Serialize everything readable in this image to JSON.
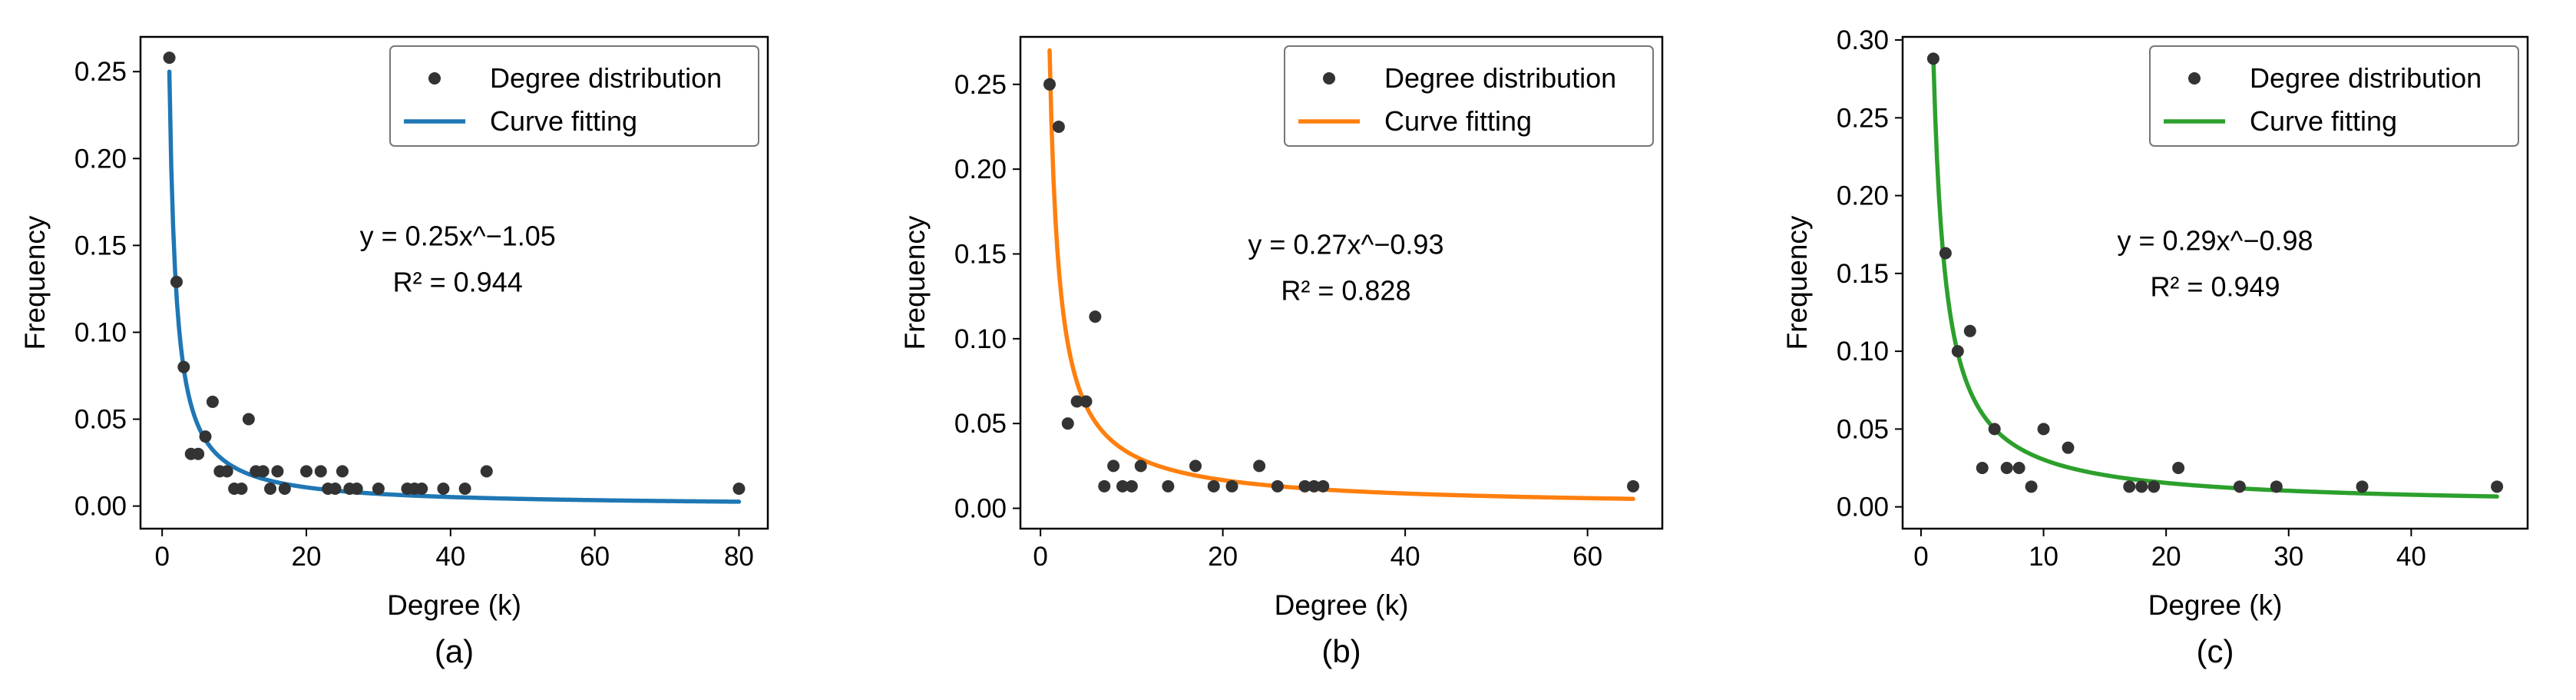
{
  "figure": {
    "panel_labels": [
      "(a)",
      "(b)",
      "(c)"
    ]
  },
  "chart_data": [
    {
      "type": "scatter",
      "panel_label": "(a)",
      "xlabel": "Degree (k)",
      "ylabel": "Frequency",
      "xlim": [
        -3,
        84
      ],
      "ylim": [
        -0.013,
        0.27
      ],
      "xticks": [
        0,
        20,
        40,
        60,
        80
      ],
      "yticks": [
        0.0,
        0.05,
        0.1,
        0.15,
        0.2,
        0.25
      ],
      "xtick_labels": [
        "0",
        "20",
        "40",
        "60",
        "80"
      ],
      "ytick_labels": [
        "0.00",
        "0.05",
        "0.10",
        "0.15",
        "0.20",
        "0.25"
      ],
      "legend": {
        "position": "top-right",
        "entries": [
          "Degree distribution",
          "Curve fitting"
        ]
      },
      "annotation": [
        "y = 0.25x^−1.05",
        "R² = 0.944"
      ],
      "annotation_at": {
        "x": 41,
        "y": 0.15
      },
      "fit": {
        "a": 0.25,
        "b": -1.05,
        "r2": 0.944,
        "x_range": [
          1,
          80
        ]
      },
      "colors": {
        "fit": "#1f77b4",
        "points": "#333333"
      },
      "series": [
        {
          "name": "Degree distribution",
          "kind": "points",
          "x": [
            1,
            2,
            3,
            4,
            5,
            6,
            7,
            8,
            9,
            10,
            11,
            12,
            13,
            14,
            15,
            16,
            17,
            20,
            22,
            23,
            24,
            25,
            26,
            27,
            30,
            34,
            35,
            36,
            39,
            42,
            45,
            80
          ],
          "y": [
            0.258,
            0.129,
            0.08,
            0.03,
            0.03,
            0.04,
            0.06,
            0.02,
            0.02,
            0.01,
            0.01,
            0.05,
            0.02,
            0.02,
            0.01,
            0.02,
            0.01,
            0.02,
            0.02,
            0.01,
            0.01,
            0.02,
            0.01,
            0.01,
            0.01,
            0.01,
            0.01,
            0.01,
            0.01,
            0.01,
            0.02,
            0.01
          ]
        },
        {
          "name": "Curve fitting",
          "kind": "line"
        }
      ]
    },
    {
      "type": "scatter",
      "panel_label": "(b)",
      "xlabel": "Degree (k)",
      "ylabel": "Frequency",
      "xlim": [
        -2.2,
        68.2
      ],
      "ylim": [
        -0.012,
        0.278
      ],
      "xticks": [
        0,
        20,
        40,
        60
      ],
      "yticks": [
        0.0,
        0.05,
        0.1,
        0.15,
        0.2,
        0.25
      ],
      "xtick_labels": [
        "0",
        "20",
        "40",
        "60"
      ],
      "ytick_labels": [
        "0.00",
        "0.05",
        "0.10",
        "0.15",
        "0.20",
        "0.25"
      ],
      "legend": {
        "position": "top-right",
        "entries": [
          "Degree distribution",
          "Curve fitting"
        ]
      },
      "annotation": [
        "y = 0.27x^−0.93",
        "R² = 0.828"
      ],
      "annotation_at": {
        "x": 33.5,
        "y": 0.15
      },
      "fit": {
        "a": 0.27,
        "b": -0.93,
        "r2": 0.828,
        "x_range": [
          1,
          65
        ]
      },
      "colors": {
        "fit": "#ff7f0e",
        "points": "#333333"
      },
      "series": [
        {
          "name": "Degree distribution",
          "kind": "points",
          "x": [
            1,
            2,
            3,
            4,
            5,
            6,
            7,
            8,
            9,
            10,
            11,
            14,
            17,
            19,
            21,
            24,
            26,
            29,
            30,
            31,
            65
          ],
          "y": [
            0.25,
            0.225,
            0.05,
            0.063,
            0.063,
            0.113,
            0.013,
            0.025,
            0.013,
            0.013,
            0.025,
            0.013,
            0.025,
            0.013,
            0.013,
            0.025,
            0.013,
            0.013,
            0.013,
            0.013,
            0.013
          ]
        },
        {
          "name": "Curve fitting",
          "kind": "line"
        }
      ]
    },
    {
      "type": "scatter",
      "panel_label": "(c)",
      "xlabel": "Degree (k)",
      "ylabel": "Frequency",
      "xlim": [
        -1.5,
        49.5
      ],
      "ylim": [
        -0.014,
        0.302
      ],
      "xticks": [
        0,
        10,
        20,
        30,
        40
      ],
      "yticks": [
        0.0,
        0.05,
        0.1,
        0.15,
        0.2,
        0.25,
        0.3
      ],
      "xtick_labels": [
        "0",
        "10",
        "20",
        "30",
        "40"
      ],
      "ytick_labels": [
        "0.00",
        "0.05",
        "0.10",
        "0.15",
        "0.20",
        "0.25",
        "0.30"
      ],
      "legend": {
        "position": "top-right",
        "entries": [
          "Degree distribution",
          "Curve fitting"
        ]
      },
      "annotation": [
        "y = 0.29x^−0.98",
        "R² = 0.949"
      ],
      "annotation_at": {
        "x": 24,
        "y": 0.165
      },
      "fit": {
        "a": 0.29,
        "b": -0.98,
        "r2": 0.949,
        "x_range": [
          1,
          47
        ]
      },
      "colors": {
        "fit": "#2ca02c",
        "points": "#333333"
      },
      "series": [
        {
          "name": "Degree distribution",
          "kind": "points",
          "x": [
            1,
            2,
            3,
            4,
            5,
            6,
            7,
            8,
            9,
            10,
            12,
            17,
            18,
            19,
            21,
            26,
            29,
            36,
            47
          ],
          "y": [
            0.288,
            0.163,
            0.1,
            0.113,
            0.025,
            0.05,
            0.025,
            0.025,
            0.013,
            0.05,
            0.038,
            0.013,
            0.013,
            0.013,
            0.025,
            0.013,
            0.013,
            0.013,
            0.013
          ]
        },
        {
          "name": "Curve fitting",
          "kind": "line"
        }
      ]
    }
  ]
}
